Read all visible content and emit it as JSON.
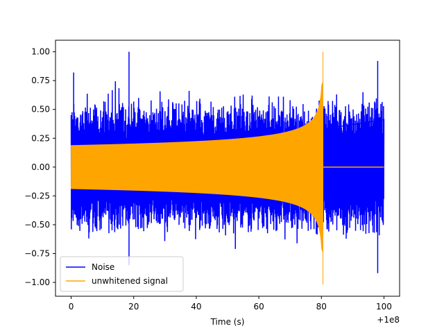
{
  "chart_data": {
    "type": "line",
    "title": "",
    "xlabel": "Time (s)",
    "ylabel": "",
    "x_offset_label": "+1e8",
    "xlim": [
      -5,
      105
    ],
    "ylim": [
      -1.12,
      1.1
    ],
    "xticks": [
      0,
      20,
      40,
      60,
      80,
      100
    ],
    "xtick_labels": [
      "0",
      "20",
      "40",
      "60",
      "80",
      "100"
    ],
    "yticks": [
      -1.0,
      -0.75,
      -0.5,
      -0.25,
      0.0,
      0.25,
      0.5,
      0.75,
      1.0
    ],
    "ytick_labels": [
      "−1.00",
      "−0.75",
      "−0.50",
      "−0.25",
      "0.00",
      "0.25",
      "0.50",
      "0.75",
      "1.00"
    ],
    "grid": false,
    "legend_position": "lower-left",
    "series": [
      {
        "name": "Noise",
        "color": "#0000ff",
        "x_range": [
          0,
          100
        ],
        "typical_amplitude": [
          -0.6,
          0.6
        ],
        "peak_values": [
          {
            "x": 0.8,
            "y": 0.82
          },
          {
            "x": 18.5,
            "y": 1.0
          },
          {
            "x": 18.5,
            "y": -0.85
          },
          {
            "x": 98,
            "y": -0.92
          },
          {
            "x": 98,
            "y": 0.92
          }
        ]
      },
      {
        "name": "unwhitened signal",
        "color": "#ffa500",
        "x_range": [
          0,
          100
        ],
        "envelope_start": 0.19,
        "envelope_peak": 1.0,
        "envelope_min": -1.02,
        "merger_x": 80.5,
        "post_merger_value": 0.0
      }
    ]
  }
}
